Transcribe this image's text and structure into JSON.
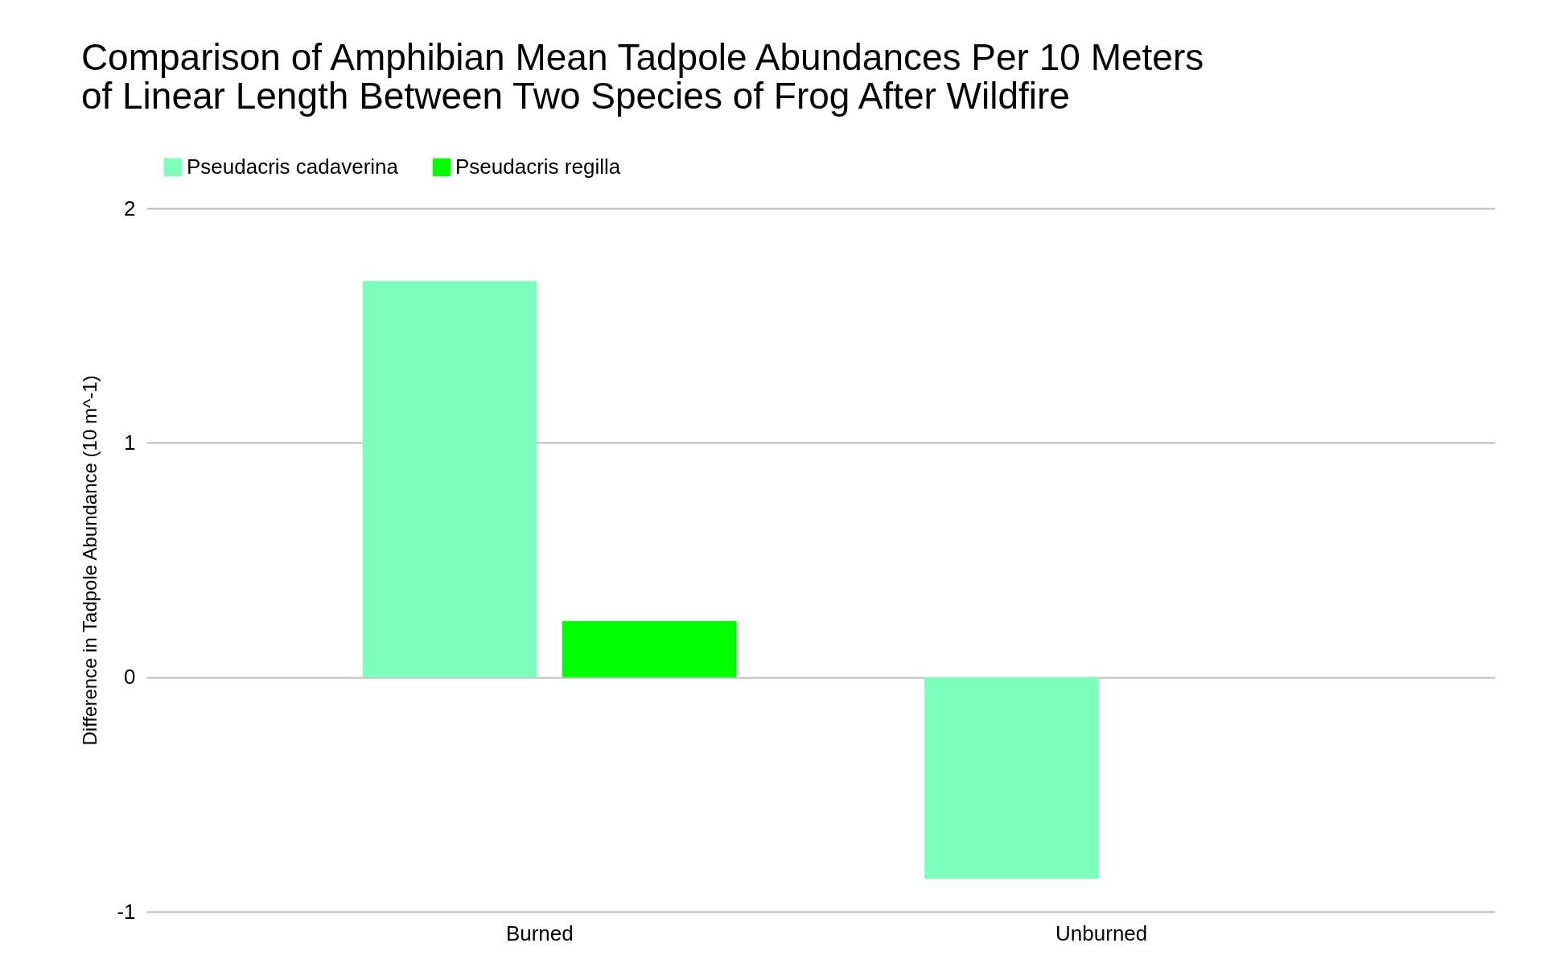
{
  "chart_data": {
    "type": "bar",
    "title": [
      "Comparison of Amphibian Mean Tadpole Abundances Per 10 Meters",
      "of Linear Length Between Two Species of Frog After Wildfire"
    ],
    "ylabel": "Difference in Tadpole Abundance (10 m^-1)",
    "categories": [
      "Burned",
      "Unburned"
    ],
    "series": [
      {
        "name": "Pseudacris cadaverina",
        "color": "#7bffbb",
        "values": [
          1.69,
          -0.86
        ]
      },
      {
        "name": "Pseudacris regilla",
        "color": "#00ff00",
        "values": [
          0.24,
          null
        ]
      }
    ],
    "ylim": [
      -1,
      2
    ],
    "yticks": [
      -1,
      0,
      1,
      2
    ],
    "grid": "y",
    "legend": "top"
  }
}
